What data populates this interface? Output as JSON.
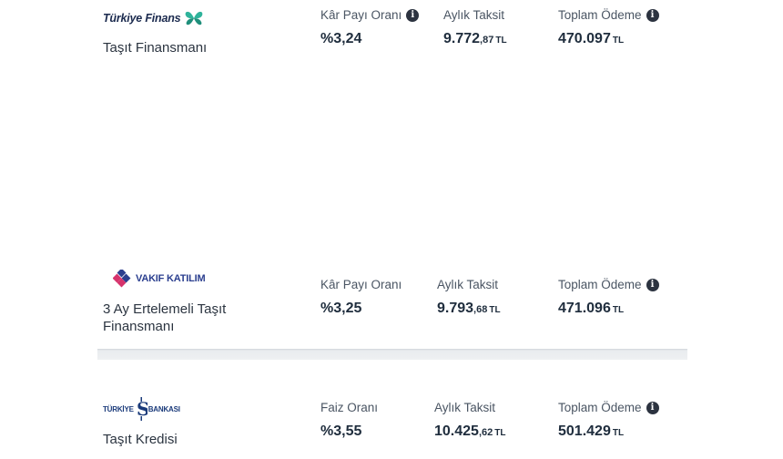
{
  "offers": [
    {
      "bank": "Türkiye Finans",
      "product": "Taşıt Finansmanı",
      "rate_label": "Kâr Payı Oranı",
      "rate": "%3,24",
      "monthly_label": "Aylık Taksit",
      "monthly_int": "9.772",
      "monthly_dec": ",87",
      "total_label": "Toplam Ödeme",
      "total": "470.097",
      "currency": "TL",
      "brand_color": "#2fb39b"
    },
    {
      "bank": "VAKIF KATILIM",
      "product": "3 Ay Ertelemeli Taşıt Finansmanı",
      "rate_label": "Kâr Payı Oranı",
      "rate": "%3,25",
      "monthly_label": "Aylık Taksit",
      "monthly_int": "9.793",
      "monthly_dec": ",68",
      "total_label": "Toplam Ödeme",
      "total": "471.096",
      "currency": "TL",
      "brand_color": "#2b3f8f"
    },
    {
      "bank_left": "TÜRKİYE",
      "bank_right": "BANKASI",
      "product": "Taşıt Kredisi",
      "rate_label": "Faiz Oranı",
      "rate": "%3,55",
      "monthly_label": "Aylık Taksit",
      "monthly_int": "10.425",
      "monthly_dec": ",62",
      "total_label": "Toplam Ödeme",
      "total": "501.429",
      "currency": "TL",
      "brand_color": "#1a3a7a"
    }
  ],
  "icons": {
    "info": "info-circle-icon"
  }
}
